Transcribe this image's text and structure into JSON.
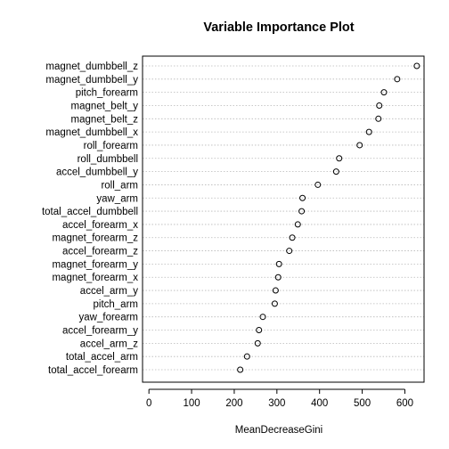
{
  "chart_data": {
    "type": "scatter",
    "title": "Variable Importance Plot",
    "xlabel": "MeanDecreaseGini",
    "ylabel": "",
    "xlim": [
      -15,
      645
    ],
    "xticks": [
      0,
      100,
      200,
      300,
      400,
      500,
      600
    ],
    "grid": "horizontal dotted lines",
    "categories": [
      "magnet_dumbbell_z",
      "magnet_dumbbell_y",
      "pitch_forearm",
      "magnet_belt_y",
      "magnet_belt_z",
      "magnet_dumbbell_x",
      "roll_forearm",
      "roll_dumbbell",
      "accel_dumbbell_y",
      "roll_arm",
      "yaw_arm",
      "total_accel_dumbbell",
      "accel_forearm_x",
      "magnet_forearm_z",
      "accel_forearm_z",
      "magnet_forearm_y",
      "magnet_forearm_x",
      "accel_arm_y",
      "pitch_arm",
      "yaw_forearm",
      "accel_forearm_y",
      "accel_arm_z",
      "total_accel_arm",
      "total_accel_forearm"
    ],
    "values": [
      628,
      582,
      551,
      540,
      538,
      516,
      494,
      446,
      439,
      396,
      360,
      358,
      349,
      336,
      329,
      305,
      303,
      297,
      295,
      267,
      258,
      255,
      230,
      214
    ]
  }
}
